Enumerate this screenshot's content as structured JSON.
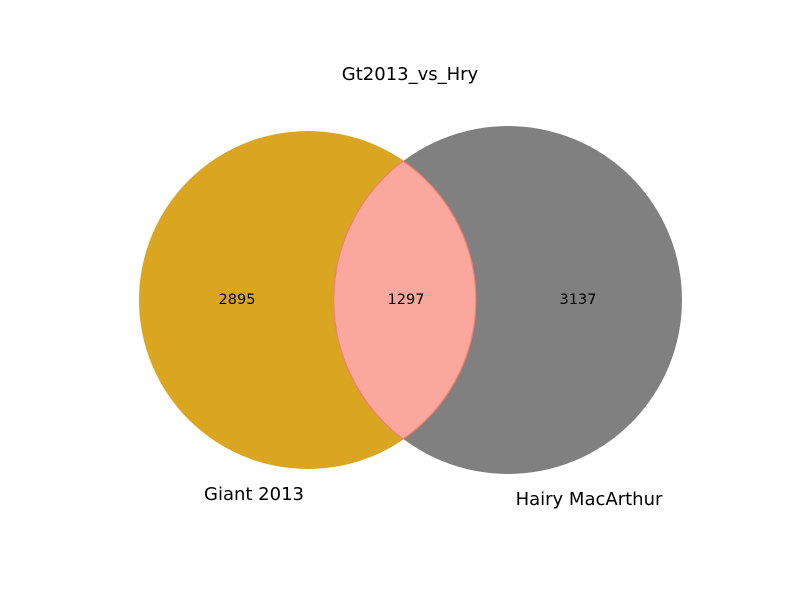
{
  "figure": {
    "title": "Gt2013_vs_Hry"
  },
  "sets": {
    "left": {
      "label": "Giant 2013",
      "only_count": "2895",
      "color": "#DAA520"
    },
    "right": {
      "label": "Hairy MacArthur",
      "only_count": "3137",
      "color": "#808080"
    },
    "intersection": {
      "count": "1297",
      "color": "#FAA79E",
      "edge_color": "#F08070"
    }
  }
}
